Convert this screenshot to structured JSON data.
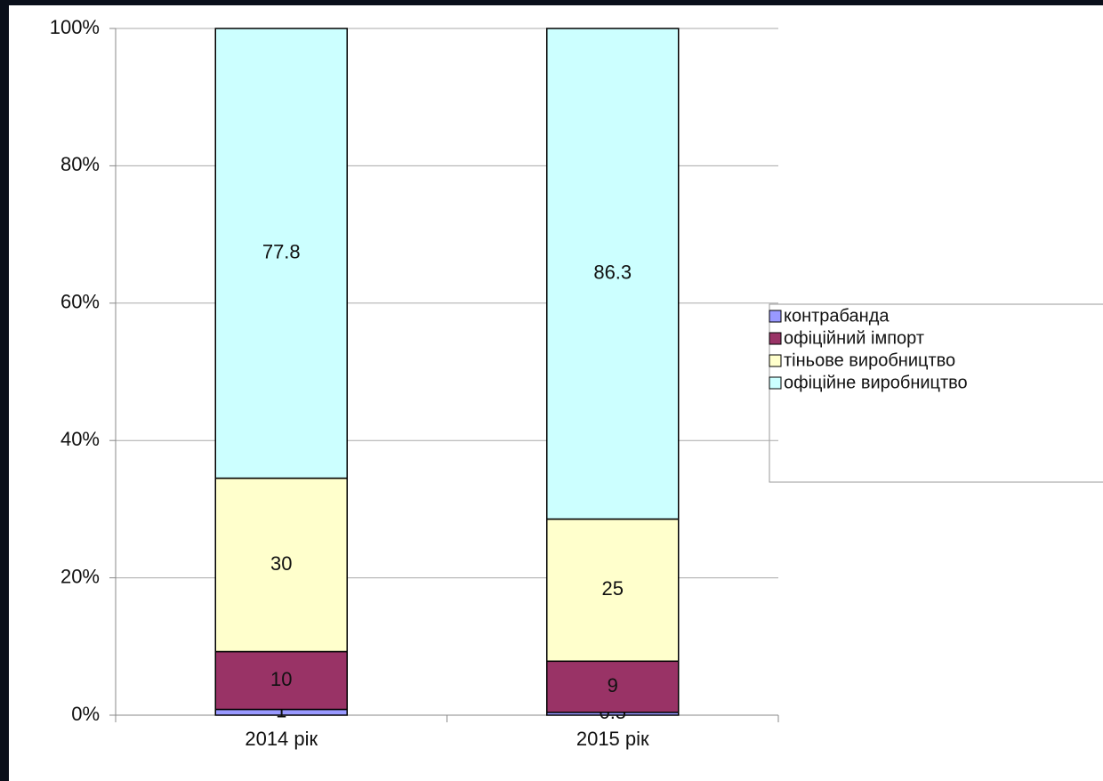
{
  "chart_data": {
    "type": "bar",
    "stacked": "percent",
    "categories": [
      "2014 рік",
      "2015 рік"
    ],
    "series": [
      {
        "name": "контрабанда",
        "color": "#9999ff",
        "values": [
          1,
          0.5
        ]
      },
      {
        "name": "офіційний імпорт",
        "color": "#993366",
        "values": [
          10,
          9
        ]
      },
      {
        "name": "тіньове виробництво",
        "color": "#ffffcc",
        "values": [
          30,
          25
        ]
      },
      {
        "name": "офіційне виробництво",
        "color": "#ccffff",
        "values": [
          77.8,
          86.3
        ]
      }
    ],
    "ylim": [
      0,
      100
    ],
    "yticks": [
      {
        "value": 0,
        "label": "0%"
      },
      {
        "value": 20,
        "label": "20%"
      },
      {
        "value": 40,
        "label": "40%"
      },
      {
        "value": 60,
        "label": "60%"
      },
      {
        "value": 80,
        "label": "80%"
      },
      {
        "value": 100,
        "label": "100%"
      }
    ],
    "grid": true,
    "legend": "right"
  }
}
